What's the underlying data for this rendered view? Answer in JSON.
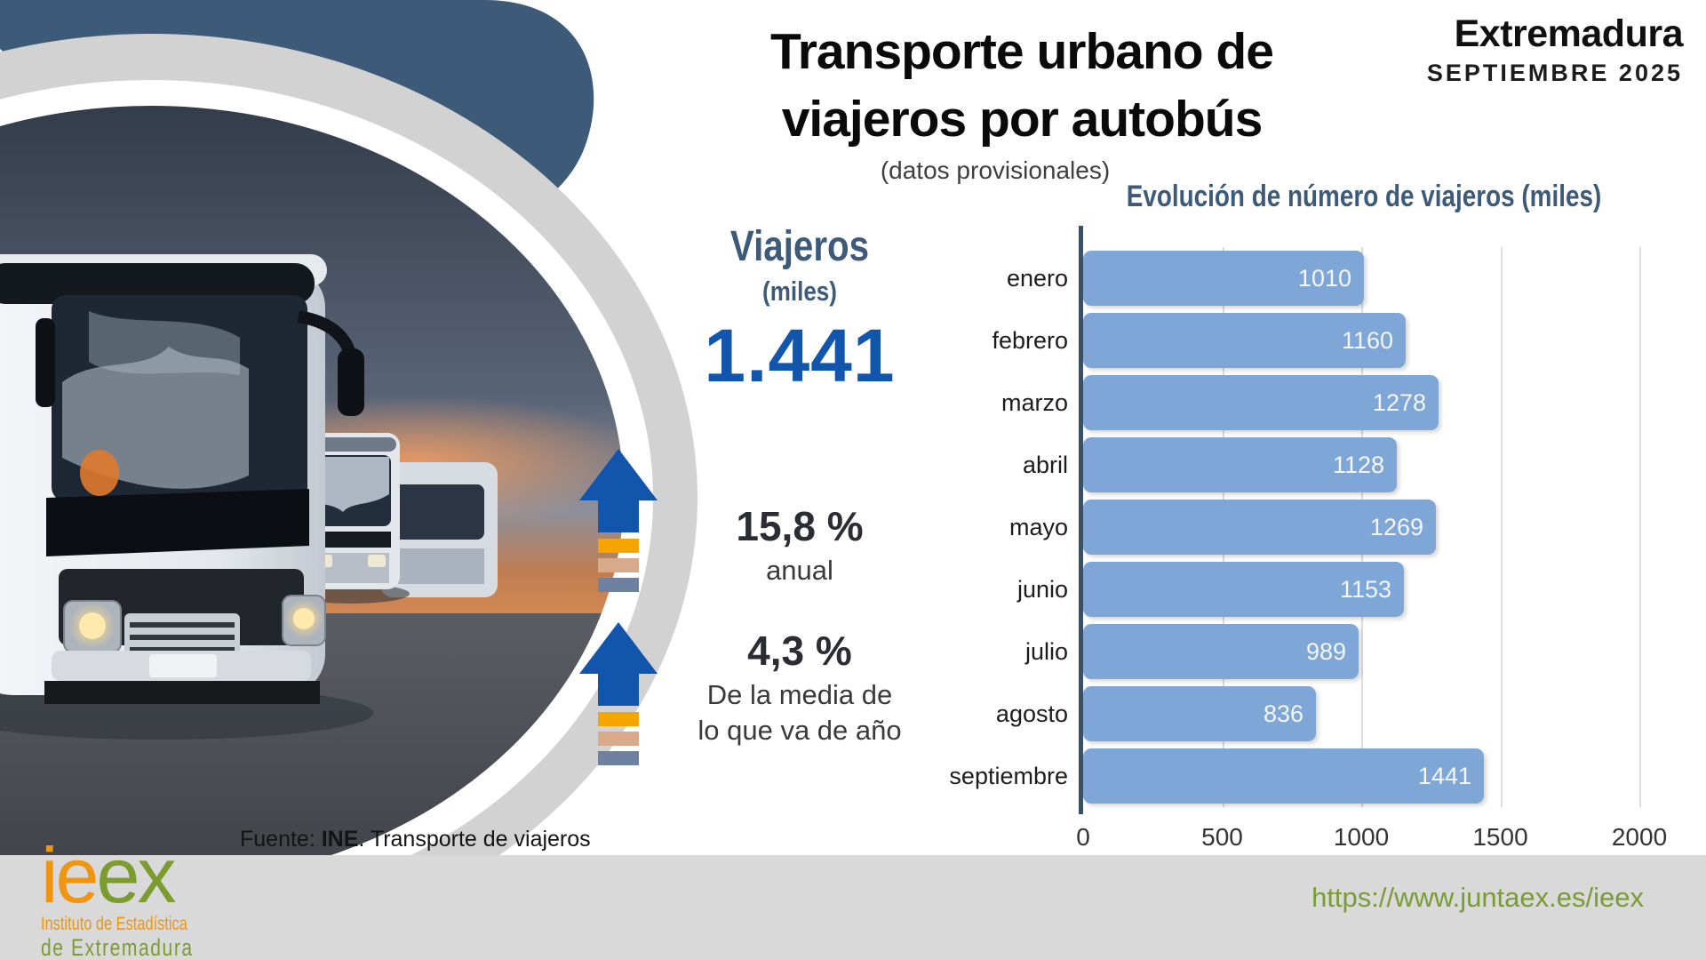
{
  "header": {
    "title_line1": "Transporte urbano de",
    "title_line2": "viajeros por autobús",
    "subtitle": "(datos provisionales)",
    "region": "Extremadura",
    "period": "SEPTIEMBRE 2025"
  },
  "kpi": {
    "label": "Viajeros",
    "unit": "(miles)",
    "value": "1.441",
    "stat1_value": "15,8 %",
    "stat1_caption": "anual",
    "stat2_value": "4,3 %",
    "stat2_caption_line1": "De la media de",
    "stat2_caption_line2": "lo que va de año"
  },
  "chart_data": {
    "type": "bar",
    "orientation": "horizontal",
    "title": "Evolución de número de viajeros (miles)",
    "categories": [
      "enero",
      "febrero",
      "marzo",
      "abril",
      "mayo",
      "junio",
      "julio",
      "agosto",
      "septiembre"
    ],
    "values": [
      1010,
      1160,
      1278,
      1128,
      1269,
      1153,
      989,
      836,
      1441
    ],
    "xlim": [
      0,
      2000
    ],
    "x_ticks": [
      0,
      500,
      1000,
      1500,
      2000
    ],
    "grid": true,
    "legend": false,
    "bar_color": "#7ea7d8",
    "value_label_color": "#f4f6f9"
  },
  "footer": {
    "source_prefix": "Fuente: ",
    "source_bold": "INE",
    "source_suffix": ". Transporte de viajeros",
    "url": "https://www.juntaex.es/ieex",
    "logo_part1": "ie",
    "logo_part2": "ex",
    "logo_sub1": "Instituto de Estadística",
    "logo_sub2": "de Extremadura"
  },
  "colors": {
    "slate": "#3d5a78",
    "axis": "#3c4f68",
    "kpi_blue": "#1156ac",
    "bar": "#7ea7d8",
    "orange": "#f6a500",
    "tan": "#d8a98b",
    "slate_bar": "#6e81a0",
    "gray_ring": "#d2d2d2",
    "footer_gray": "#d9d9d9",
    "logo_orange": "#ef9512",
    "logo_green": "#7d9c2f",
    "url_green": "#7a9c35"
  }
}
